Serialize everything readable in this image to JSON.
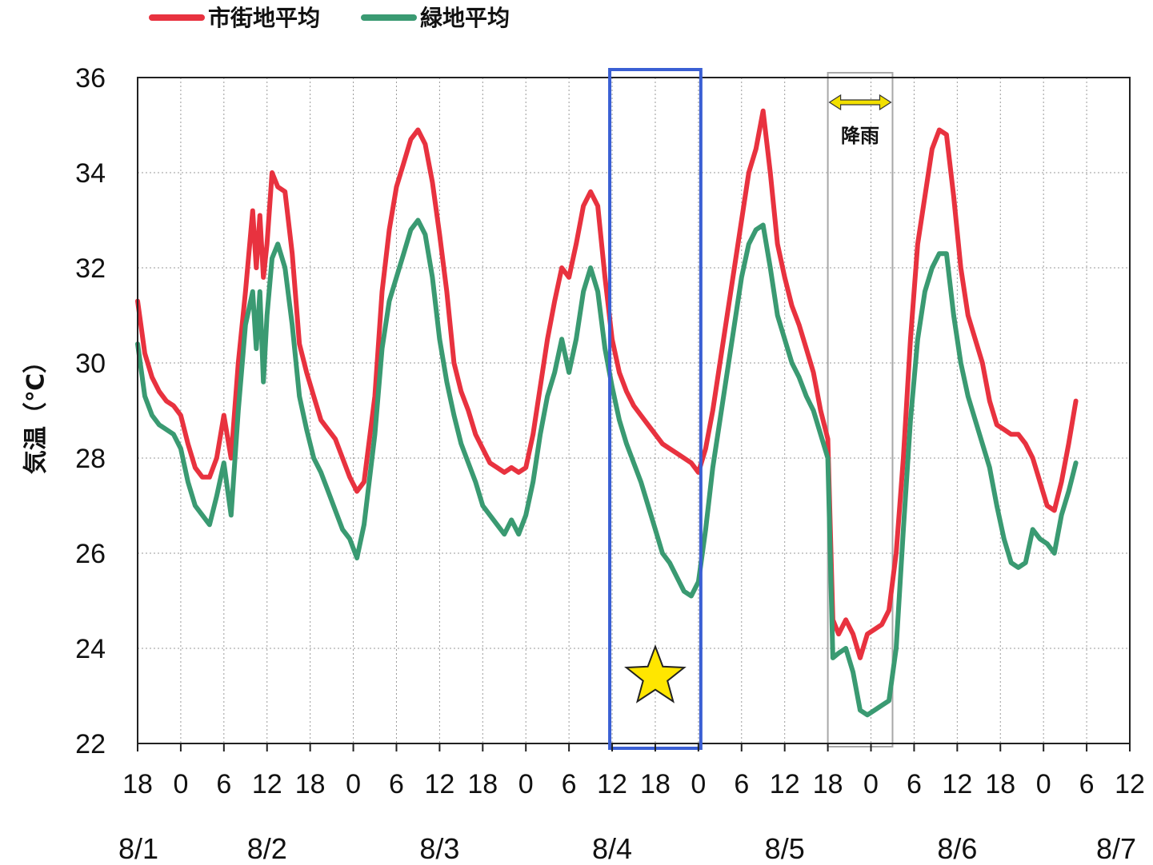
{
  "chart_data": {
    "type": "line",
    "ylabel": "気温（℃）",
    "ylim": [
      22,
      36
    ],
    "yticks": [
      22,
      24,
      26,
      28,
      30,
      32,
      34,
      36
    ],
    "x_unit": "hours since 8/1 18:00",
    "xlim": [
      0,
      138
    ],
    "x_tick_labels": [
      "18",
      "0",
      "6",
      "12",
      "18",
      "0",
      "6",
      "12",
      "18",
      "0",
      "6",
      "12",
      "18",
      "0",
      "6",
      "12",
      "18",
      "0",
      "6",
      "12",
      "18",
      "0",
      "6",
      "12"
    ],
    "date_labels": [
      {
        "label": "8/1",
        "x": 0
      },
      {
        "label": "8/2",
        "x": 18
      },
      {
        "label": "8/3",
        "x": 42
      },
      {
        "label": "8/4",
        "x": 66
      },
      {
        "label": "8/5",
        "x": 90
      },
      {
        "label": "8/6",
        "x": 114
      },
      {
        "label": "8/7",
        "x": 138
      }
    ],
    "grid": true,
    "legend_position": "top-left",
    "series": [
      {
        "name": "市街地平均",
        "color": "#e8323f",
        "points": [
          [
            0,
            31.3
          ],
          [
            1,
            30.2
          ],
          [
            2,
            29.7
          ],
          [
            3,
            29.4
          ],
          [
            4,
            29.2
          ],
          [
            5,
            29.1
          ],
          [
            6,
            28.9
          ],
          [
            7,
            28.3
          ],
          [
            8,
            27.8
          ],
          [
            9,
            27.6
          ],
          [
            10,
            27.6
          ],
          [
            11,
            28.0
          ],
          [
            12,
            28.9
          ],
          [
            13,
            28.0
          ],
          [
            14,
            30.0
          ],
          [
            15,
            31.5
          ],
          [
            16,
            33.2
          ],
          [
            16.5,
            32.0
          ],
          [
            17,
            33.1
          ],
          [
            17.5,
            31.8
          ],
          [
            18,
            32.5
          ],
          [
            18.7,
            34.0
          ],
          [
            19.5,
            33.7
          ],
          [
            20.5,
            33.6
          ],
          [
            21.5,
            32.3
          ],
          [
            22.5,
            30.4
          ],
          [
            23.5,
            29.8
          ],
          [
            24.5,
            29.3
          ],
          [
            25.5,
            28.8
          ],
          [
            26.5,
            28.6
          ],
          [
            27.5,
            28.4
          ],
          [
            28.5,
            28.0
          ],
          [
            29.5,
            27.6
          ],
          [
            30.5,
            27.3
          ],
          [
            31.5,
            27.5
          ],
          [
            33,
            29.3
          ],
          [
            34,
            31.5
          ],
          [
            35,
            32.8
          ],
          [
            36,
            33.7
          ],
          [
            37,
            34.2
          ],
          [
            38,
            34.7
          ],
          [
            39,
            34.9
          ],
          [
            40,
            34.6
          ],
          [
            41,
            33.8
          ],
          [
            42,
            32.7
          ],
          [
            43,
            31.5
          ],
          [
            44,
            30.0
          ],
          [
            45,
            29.4
          ],
          [
            46,
            29.0
          ],
          [
            47,
            28.5
          ],
          [
            48,
            28.2
          ],
          [
            49,
            27.9
          ],
          [
            50,
            27.8
          ],
          [
            51,
            27.7
          ],
          [
            52,
            27.8
          ],
          [
            53,
            27.7
          ],
          [
            54,
            27.8
          ],
          [
            55,
            28.5
          ],
          [
            56,
            29.5
          ],
          [
            57,
            30.5
          ],
          [
            58,
            31.3
          ],
          [
            59,
            32.0
          ],
          [
            60,
            31.8
          ],
          [
            61,
            32.5
          ],
          [
            62,
            33.3
          ],
          [
            63,
            33.6
          ],
          [
            64,
            33.3
          ],
          [
            65,
            31.8
          ],
          [
            66,
            30.5
          ],
          [
            67,
            29.8
          ],
          [
            68,
            29.4
          ],
          [
            69,
            29.1
          ],
          [
            70,
            28.9
          ],
          [
            71,
            28.7
          ],
          [
            72,
            28.5
          ],
          [
            73,
            28.3
          ],
          [
            74,
            28.2
          ],
          [
            75,
            28.1
          ],
          [
            76,
            28.0
          ],
          [
            77,
            27.9
          ],
          [
            78,
            27.7
          ],
          [
            79,
            28.2
          ],
          [
            80,
            29.0
          ],
          [
            81,
            30.0
          ],
          [
            82,
            31.0
          ],
          [
            83,
            32.0
          ],
          [
            84,
            33.0
          ],
          [
            85,
            34.0
          ],
          [
            86,
            34.5
          ],
          [
            87,
            35.3
          ],
          [
            88,
            34.0
          ],
          [
            89,
            32.5
          ],
          [
            90,
            31.8
          ],
          [
            91,
            31.2
          ],
          [
            92,
            30.8
          ],
          [
            93,
            30.3
          ],
          [
            94,
            29.8
          ],
          [
            95,
            29.0
          ],
          [
            96,
            28.4
          ],
          [
            96.7,
            24.6
          ],
          [
            97.5,
            24.3
          ],
          [
            98.5,
            24.6
          ],
          [
            99.5,
            24.3
          ],
          [
            100.5,
            23.8
          ],
          [
            101.5,
            24.3
          ],
          [
            102.5,
            24.4
          ],
          [
            103.5,
            24.5
          ],
          [
            104.5,
            24.8
          ],
          [
            105.5,
            26.0
          ],
          [
            106.5,
            28.0
          ],
          [
            107.5,
            30.5
          ],
          [
            108.5,
            32.5
          ],
          [
            109.5,
            33.5
          ],
          [
            110.5,
            34.5
          ],
          [
            111.5,
            34.9
          ],
          [
            112.5,
            34.8
          ],
          [
            113.5,
            33.5
          ],
          [
            114.5,
            32.0
          ],
          [
            115.5,
            31.0
          ],
          [
            116.5,
            30.5
          ],
          [
            117.5,
            30.0
          ],
          [
            118.5,
            29.2
          ],
          [
            119.5,
            28.7
          ],
          [
            120.5,
            28.6
          ],
          [
            121.5,
            28.5
          ],
          [
            122.5,
            28.5
          ],
          [
            123.5,
            28.3
          ],
          [
            124.5,
            28.0
          ],
          [
            125.5,
            27.5
          ],
          [
            126.5,
            27.0
          ],
          [
            127.5,
            26.9
          ],
          [
            128.5,
            27.5
          ],
          [
            129.5,
            28.3
          ],
          [
            130.5,
            29.2
          ]
        ]
      },
      {
        "name": "緑地平均",
        "color": "#3a9a72",
        "points": [
          [
            0,
            30.4
          ],
          [
            1,
            29.3
          ],
          [
            2,
            28.9
          ],
          [
            3,
            28.7
          ],
          [
            4,
            28.6
          ],
          [
            5,
            28.5
          ],
          [
            6,
            28.2
          ],
          [
            7,
            27.5
          ],
          [
            8,
            27.0
          ],
          [
            9,
            26.8
          ],
          [
            10,
            26.6
          ],
          [
            11,
            27.2
          ],
          [
            12,
            27.9
          ],
          [
            13,
            26.8
          ],
          [
            14,
            29.0
          ],
          [
            15,
            30.8
          ],
          [
            16,
            31.5
          ],
          [
            16.5,
            30.3
          ],
          [
            17,
            31.5
          ],
          [
            17.5,
            29.6
          ],
          [
            18,
            31.0
          ],
          [
            18.7,
            32.2
          ],
          [
            19.5,
            32.5
          ],
          [
            20.5,
            32.0
          ],
          [
            21.5,
            30.8
          ],
          [
            22.5,
            29.3
          ],
          [
            23.5,
            28.6
          ],
          [
            24.5,
            28.0
          ],
          [
            25.5,
            27.7
          ],
          [
            26.5,
            27.3
          ],
          [
            27.5,
            26.9
          ],
          [
            28.5,
            26.5
          ],
          [
            29.5,
            26.3
          ],
          [
            30.5,
            25.9
          ],
          [
            31.5,
            26.6
          ],
          [
            33,
            28.5
          ],
          [
            34,
            30.3
          ],
          [
            35,
            31.3
          ],
          [
            36,
            31.8
          ],
          [
            37,
            32.3
          ],
          [
            38,
            32.8
          ],
          [
            39,
            33.0
          ],
          [
            40,
            32.7
          ],
          [
            41,
            31.8
          ],
          [
            42,
            30.5
          ],
          [
            43,
            29.6
          ],
          [
            44,
            28.9
          ],
          [
            45,
            28.3
          ],
          [
            46,
            27.9
          ],
          [
            47,
            27.5
          ],
          [
            48,
            27.0
          ],
          [
            49,
            26.8
          ],
          [
            50,
            26.6
          ],
          [
            51,
            26.4
          ],
          [
            52,
            26.7
          ],
          [
            53,
            26.4
          ],
          [
            54,
            26.8
          ],
          [
            55,
            27.5
          ],
          [
            56,
            28.5
          ],
          [
            57,
            29.3
          ],
          [
            58,
            29.8
          ],
          [
            59,
            30.5
          ],
          [
            60,
            29.8
          ],
          [
            61,
            30.5
          ],
          [
            62,
            31.5
          ],
          [
            63,
            32.0
          ],
          [
            64,
            31.5
          ],
          [
            65,
            30.3
          ],
          [
            66,
            29.5
          ],
          [
            67,
            28.8
          ],
          [
            68,
            28.3
          ],
          [
            69,
            27.9
          ],
          [
            70,
            27.5
          ],
          [
            71,
            27.0
          ],
          [
            72,
            26.5
          ],
          [
            73,
            26.0
          ],
          [
            74,
            25.8
          ],
          [
            75,
            25.5
          ],
          [
            76,
            25.2
          ],
          [
            77,
            25.1
          ],
          [
            78,
            25.4
          ],
          [
            79,
            26.5
          ],
          [
            80,
            27.8
          ],
          [
            81,
            28.8
          ],
          [
            82,
            29.8
          ],
          [
            83,
            30.8
          ],
          [
            84,
            31.8
          ],
          [
            85,
            32.5
          ],
          [
            86,
            32.8
          ],
          [
            87,
            32.9
          ],
          [
            88,
            32.0
          ],
          [
            89,
            31.0
          ],
          [
            90,
            30.5
          ],
          [
            91,
            30.0
          ],
          [
            92,
            29.7
          ],
          [
            93,
            29.3
          ],
          [
            94,
            29.0
          ],
          [
            95,
            28.5
          ],
          [
            96,
            28.0
          ],
          [
            96.7,
            23.8
          ],
          [
            97.5,
            23.9
          ],
          [
            98.5,
            24.0
          ],
          [
            99.5,
            23.5
          ],
          [
            100.5,
            22.7
          ],
          [
            101.5,
            22.6
          ],
          [
            102.5,
            22.7
          ],
          [
            103.5,
            22.8
          ],
          [
            104.5,
            22.9
          ],
          [
            105.5,
            24.0
          ],
          [
            106.5,
            26.5
          ],
          [
            107.5,
            28.8
          ],
          [
            108.5,
            30.5
          ],
          [
            109.5,
            31.5
          ],
          [
            110.5,
            32.0
          ],
          [
            111.5,
            32.3
          ],
          [
            112.5,
            32.3
          ],
          [
            113.5,
            31.0
          ],
          [
            114.5,
            30.0
          ],
          [
            115.5,
            29.3
          ],
          [
            116.5,
            28.8
          ],
          [
            117.5,
            28.3
          ],
          [
            118.5,
            27.8
          ],
          [
            119.5,
            27.0
          ],
          [
            120.5,
            26.3
          ],
          [
            121.5,
            25.8
          ],
          [
            122.5,
            25.7
          ],
          [
            123.5,
            25.8
          ],
          [
            124.5,
            26.5
          ],
          [
            125.5,
            26.3
          ],
          [
            126.5,
            26.2
          ],
          [
            127.5,
            26.0
          ],
          [
            128.5,
            26.8
          ],
          [
            129.5,
            27.3
          ],
          [
            130.5,
            27.9
          ]
        ]
      }
    ],
    "annotations": {
      "blue_box_range": [
        66,
        78
      ],
      "rain_range": [
        96,
        105
      ],
      "rain_label": "降雨",
      "star_x": 72,
      "star_y": 23.4,
      "blue_box_color": "#3a5fd4",
      "rain_box_color": "#a8a8a8",
      "rain_arrow_color": "#f2e000",
      "star_color": "#ffe600"
    }
  }
}
